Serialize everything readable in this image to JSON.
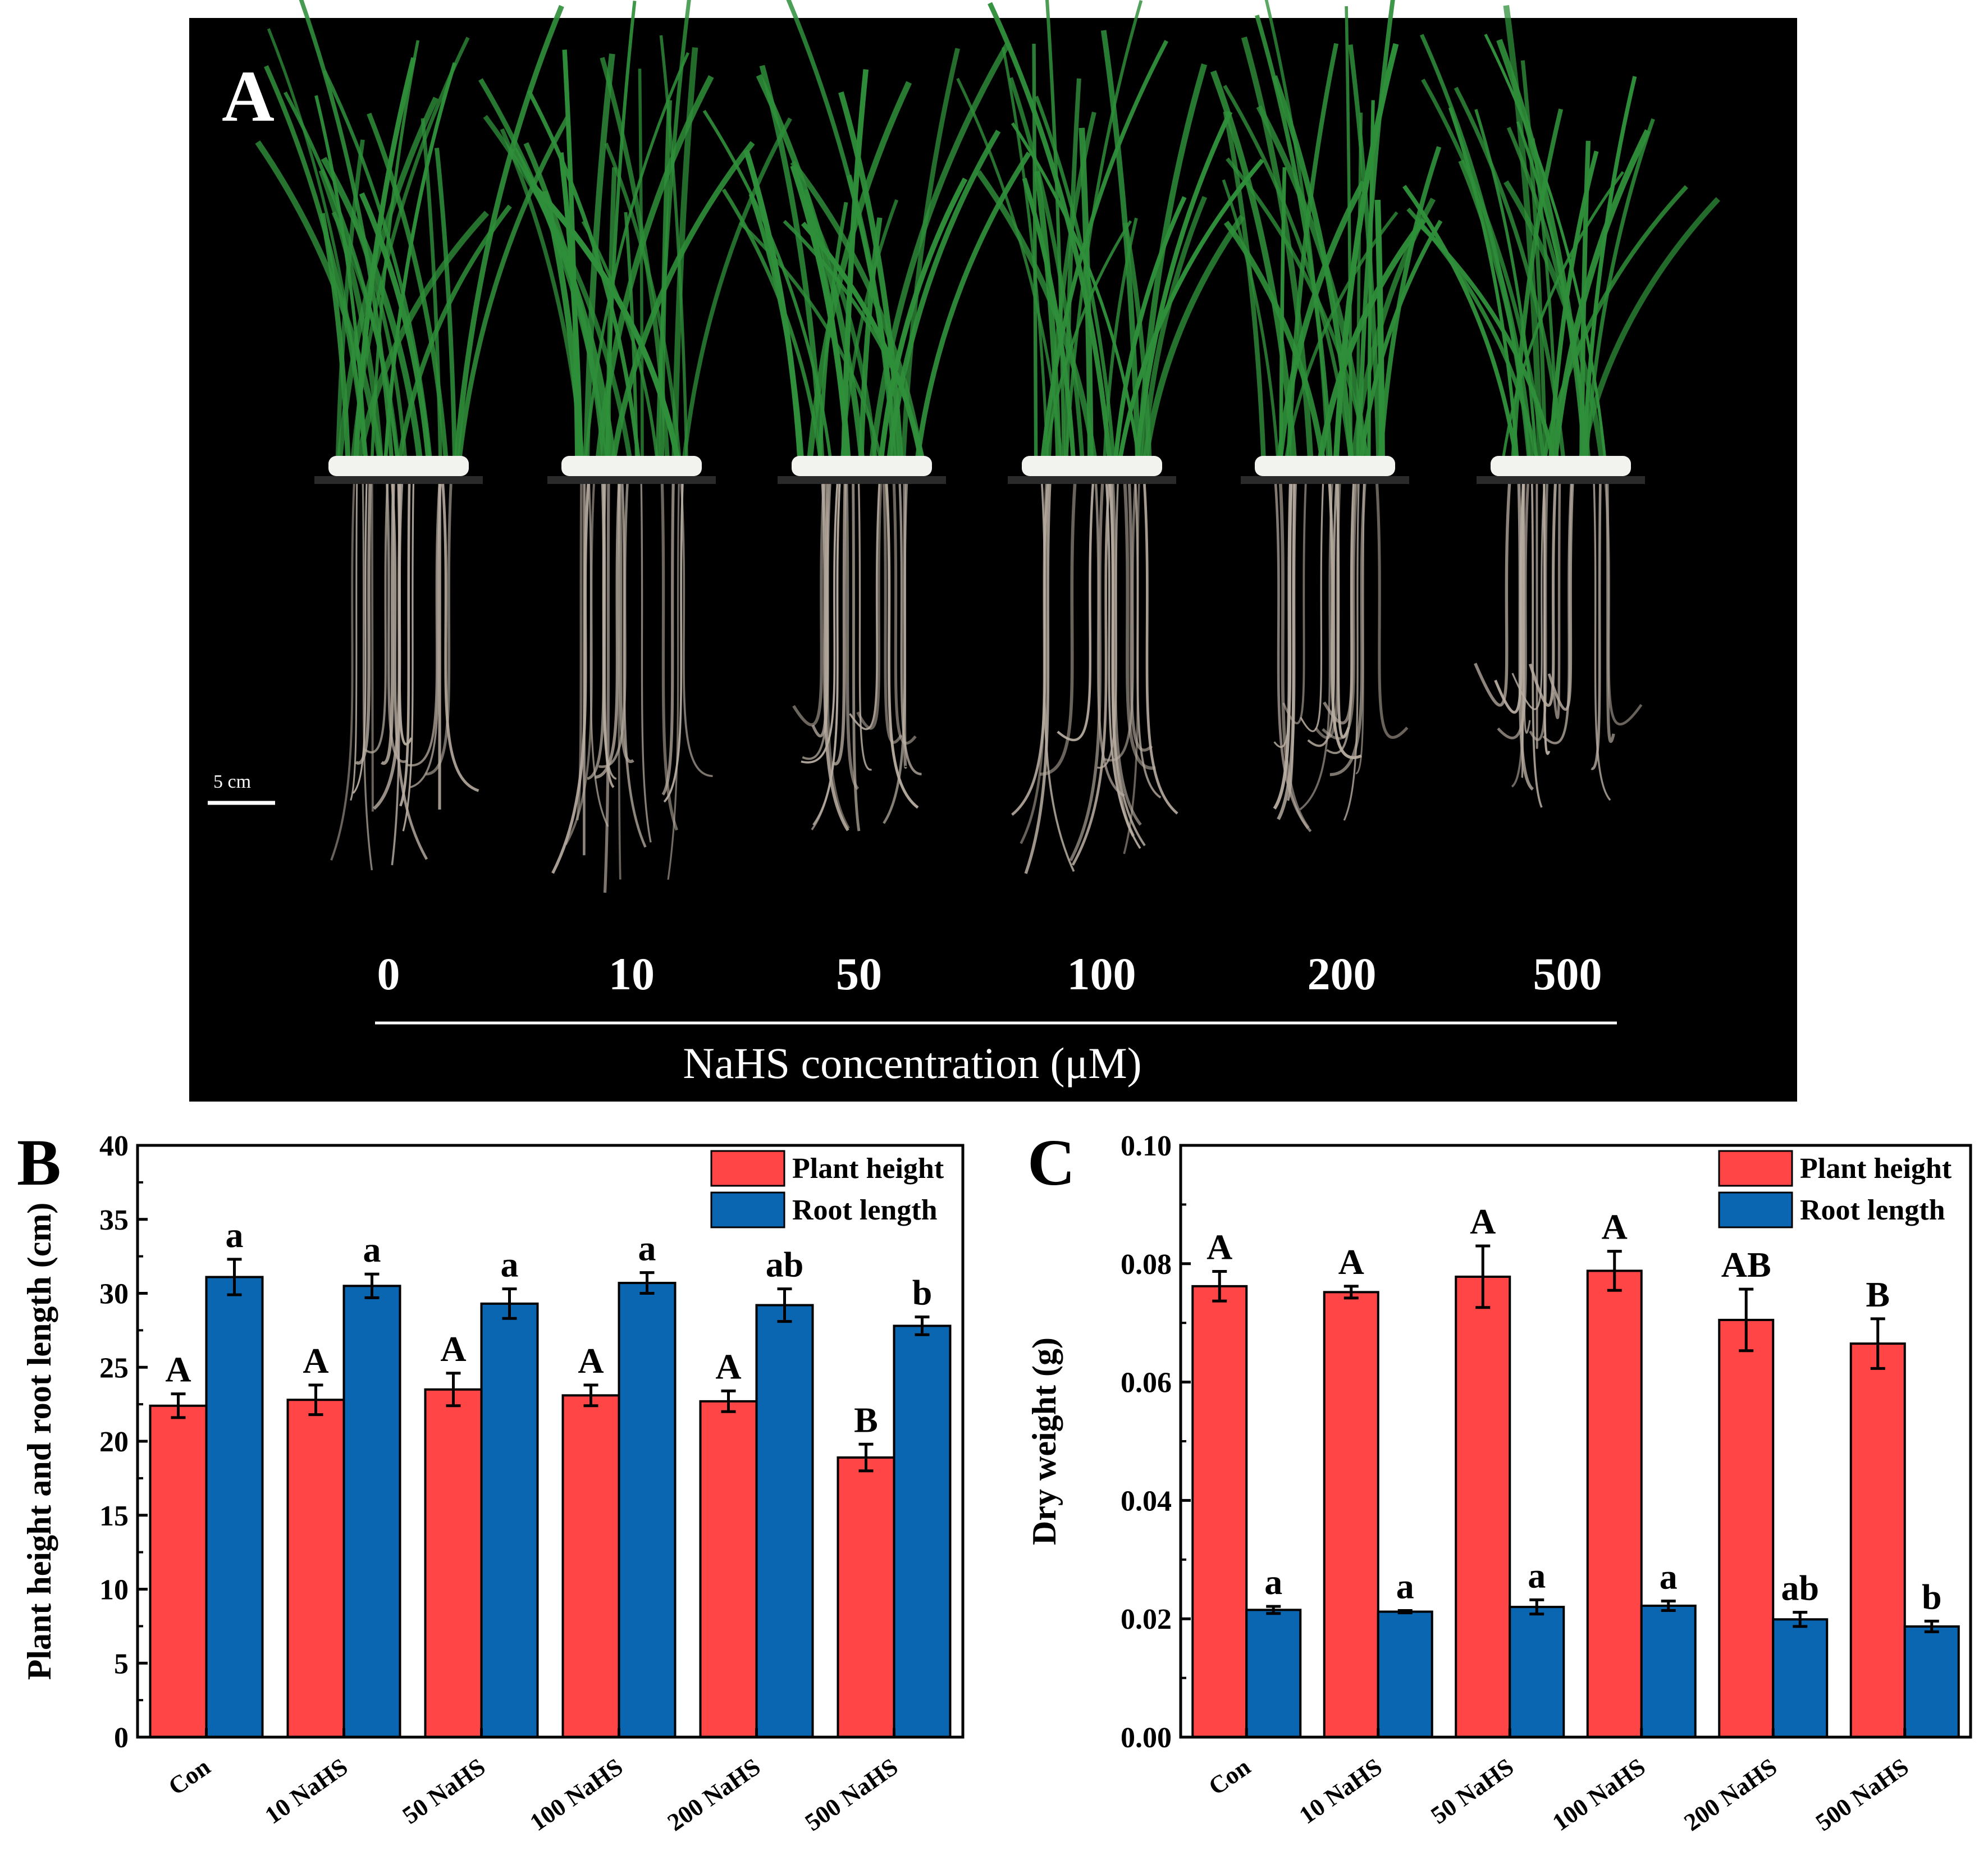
{
  "panel_a": {
    "letter": "A",
    "scale_bar_label": "5 cm",
    "concentration_labels": [
      "0",
      "10",
      "50",
      "100",
      "200",
      "500"
    ],
    "axis_label": "NaHS concentration (μM)",
    "colors": {
      "background": "#000000",
      "leaf": "#2f8f3a",
      "root": "#b9aea2",
      "foam": "#f2f2ee"
    }
  },
  "chart_data": [
    {
      "panel": "B",
      "type": "bar",
      "title": "",
      "xlabel": "",
      "ylabel": "Plant height and root length (cm)",
      "ylim": [
        0,
        40
      ],
      "yticks": [
        0,
        5,
        10,
        15,
        20,
        25,
        30,
        35,
        40
      ],
      "ytick_labels": [
        "0",
        "5",
        "10",
        "15",
        "20",
        "25",
        "30",
        "35",
        "40"
      ],
      "categories": [
        "Con",
        "10 NaHS",
        "50 NaHS",
        "100 NaHS",
        "200 NaHS",
        "500 NaHS"
      ],
      "legend_position": "top-right",
      "grid": false,
      "series": [
        {
          "name": "Plant height",
          "color": "#ff4545",
          "values": [
            22.4,
            22.8,
            23.5,
            23.1,
            22.7,
            18.9
          ],
          "errors": [
            0.8,
            1.0,
            1.1,
            0.7,
            0.7,
            0.9
          ],
          "letters": [
            "A",
            "A",
            "A",
            "A",
            "A",
            "B"
          ]
        },
        {
          "name": "Root length",
          "color": "#0a66b0",
          "values": [
            31.1,
            30.5,
            29.3,
            30.7,
            29.2,
            27.8
          ],
          "errors": [
            1.2,
            0.8,
            1.0,
            0.7,
            1.1,
            0.6
          ],
          "letters": [
            "a",
            "a",
            "a",
            "a",
            "ab",
            "b"
          ]
        }
      ]
    },
    {
      "panel": "C",
      "type": "bar",
      "title": "",
      "xlabel": "",
      "ylabel": "Dry weight (g)",
      "ylim": [
        0,
        0.1
      ],
      "yticks": [
        0,
        0.02,
        0.04,
        0.06,
        0.08,
        0.1
      ],
      "ytick_labels": [
        "0.00",
        "0.02",
        "0.04",
        "0.06",
        "0.08",
        "0.10"
      ],
      "categories": [
        "Con",
        "10 NaHS",
        "50 NaHS",
        "100 NaHS",
        "200 NaHS",
        "500 NaHS"
      ],
      "legend_position": "top-right",
      "grid": false,
      "series": [
        {
          "name": "Plant height",
          "color": "#ff4545",
          "values": [
            0.0762,
            0.0752,
            0.0778,
            0.0788,
            0.0705,
            0.0665
          ],
          "errors": [
            0.0025,
            0.001,
            0.0052,
            0.0033,
            0.0052,
            0.0042
          ],
          "letters": [
            "A",
            "A",
            "A",
            "A",
            "AB",
            "B"
          ]
        },
        {
          "name": "Root length",
          "color": "#0a66b0",
          "values": [
            0.0215,
            0.0212,
            0.022,
            0.0222,
            0.0199,
            0.0187
          ],
          "errors": [
            0.0006,
            0.0002,
            0.0012,
            0.0008,
            0.0012,
            0.0009
          ],
          "letters": [
            "a",
            "a",
            "a",
            "a",
            "ab",
            "b"
          ]
        }
      ]
    }
  ]
}
